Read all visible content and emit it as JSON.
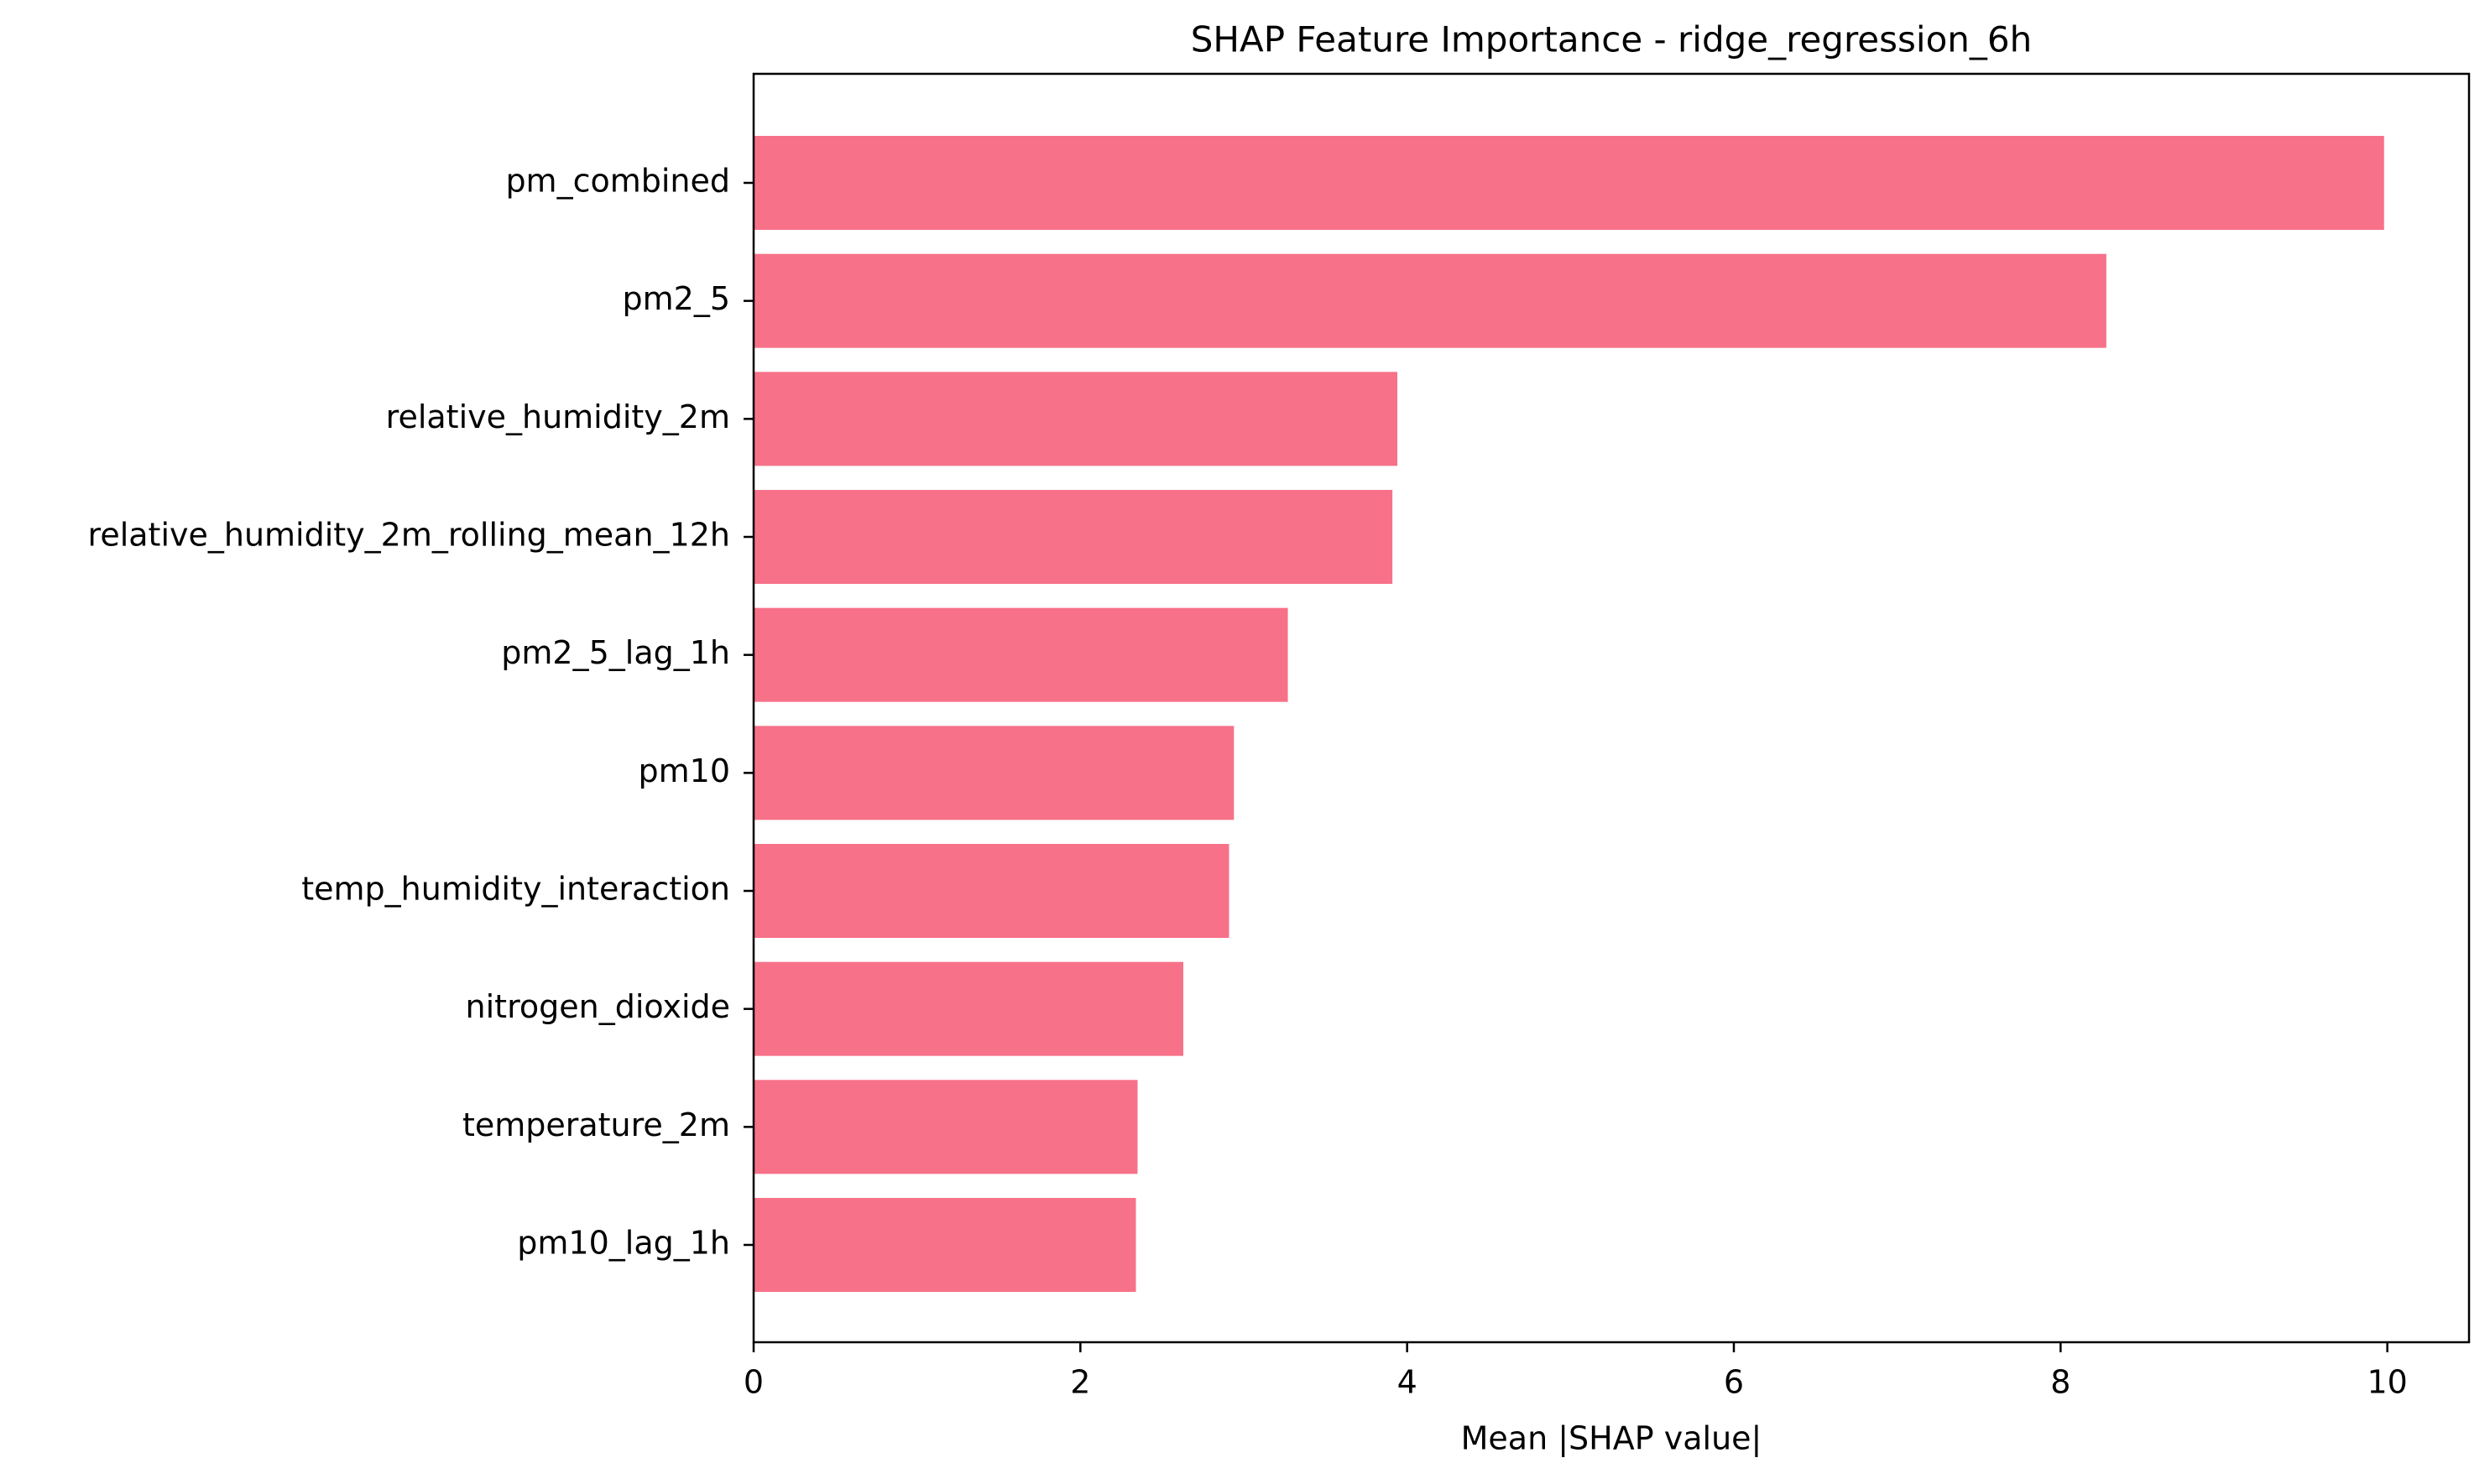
{
  "chart_data": {
    "type": "bar",
    "orientation": "horizontal",
    "title": "SHAP Feature Importance - ridge_regression_6h",
    "xlabel": "Mean |SHAP value|",
    "ylabel": "",
    "xlim": [
      0,
      10.5
    ],
    "xticks": [
      0,
      2,
      4,
      6,
      8,
      10
    ],
    "grid": false,
    "bar_color": "#f77189",
    "categories": [
      "pm_combined",
      "pm2_5",
      "relative_humidity_2m",
      "relative_humidity_2m_rolling_mean_12h",
      "pm2_5_lag_1h",
      "pm10",
      "temp_humidity_interaction",
      "nitrogen_dioxide",
      "temperature_2m",
      "pm10_lag_1h"
    ],
    "values": [
      9.98,
      8.28,
      3.94,
      3.91,
      3.27,
      2.94,
      2.91,
      2.63,
      2.35,
      2.34
    ]
  }
}
